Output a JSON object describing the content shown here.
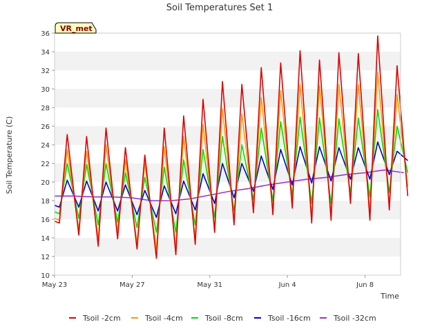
{
  "chart_data": {
    "type": "line",
    "title": "Soil Temperatures Set 1",
    "xlabel": "Time",
    "ylabel": "Soil Temperature (C)",
    "station_badge": "VR_met",
    "ylim": [
      10,
      36
    ],
    "y_ticks": [
      10,
      12,
      14,
      16,
      18,
      20,
      22,
      24,
      26,
      28,
      30,
      32,
      34,
      36
    ],
    "x_range_days": [
      "May 23",
      "Jun 10"
    ],
    "x_ticks": [
      {
        "day": 0,
        "label": "May 23"
      },
      {
        "day": 4,
        "label": "May 27"
      },
      {
        "day": 8,
        "label": "May 31"
      },
      {
        "day": 12,
        "label": "Jun 4"
      },
      {
        "day": 16,
        "label": "Jun 8"
      }
    ],
    "grid": "horizontal bands",
    "legend_position": "bottom",
    "series": [
      {
        "name": "Tsoil -2cm",
        "color": "#dd0000",
        "daily_min": [
          15.6,
          14.3,
          13.1,
          13.9,
          12.8,
          11.8,
          12.2,
          13.3,
          14.6,
          15.4,
          16.7,
          16.5,
          17.2,
          15.6,
          15.9,
          17.7,
          15.9,
          17.0
        ],
        "daily_max": [
          25.1,
          24.9,
          25.8,
          23.7,
          22.9,
          25.8,
          27.1,
          28.9,
          30.8,
          30.5,
          32.3,
          32.8,
          34.1,
          33.1,
          33.9,
          33.8,
          35.7,
          32.5
        ],
        "end_value": 18.5
      },
      {
        "name": "Tsoil -4cm",
        "color": "#ff9900",
        "daily_min": [
          15.9,
          14.9,
          13.9,
          14.6,
          13.5,
          12.8,
          13.0,
          14.0,
          15.1,
          15.9,
          17.2,
          17.0,
          17.7,
          16.3,
          16.5,
          18.1,
          16.8,
          17.6
        ],
        "daily_max": [
          23.5,
          23.3,
          24.0,
          22.4,
          22.0,
          23.8,
          24.9,
          26.2,
          27.9,
          27.3,
          29.1,
          29.8,
          30.5,
          30.4,
          30.5,
          30.5,
          31.8,
          29.4
        ],
        "end_value": 19.5
      },
      {
        "name": "Tsoil -8cm",
        "color": "#00dd00",
        "daily_min": [
          16.6,
          16.1,
          15.4,
          15.7,
          15.1,
          14.6,
          14.6,
          15.4,
          16.2,
          16.9,
          18.1,
          18.0,
          18.6,
          17.7,
          17.7,
          18.8,
          18.4,
          18.9
        ],
        "daily_max": [
          22.0,
          21.9,
          22.0,
          21.0,
          20.5,
          21.6,
          22.4,
          23.5,
          24.9,
          24.0,
          25.8,
          26.5,
          27.0,
          26.9,
          26.8,
          26.9,
          27.8,
          26.0
        ],
        "end_value": 21.0
      },
      {
        "name": "Tsoil -16cm",
        "color": "#0000cc",
        "daily_min": [
          17.3,
          17.3,
          16.9,
          16.9,
          16.5,
          16.2,
          16.6,
          17.0,
          17.7,
          18.3,
          19.0,
          19.2,
          19.7,
          19.9,
          20.1,
          20.3,
          20.3,
          20.8
        ],
        "daily_max": [
          20.2,
          20.1,
          20.0,
          19.7,
          19.1,
          19.6,
          20.1,
          20.9,
          22.0,
          22.0,
          22.8,
          23.5,
          23.8,
          23.8,
          23.7,
          23.7,
          24.3,
          23.3
        ],
        "end_value": 22.3
      },
      {
        "name": "Tsoil -32cm",
        "color": "#9933cc",
        "points": [
          [
            0,
            18.5
          ],
          [
            1,
            18.5
          ],
          [
            2,
            18.4
          ],
          [
            3,
            18.4
          ],
          [
            4,
            18.3
          ],
          [
            5,
            18.0
          ],
          [
            6,
            18.0
          ],
          [
            7,
            18.2
          ],
          [
            8,
            18.6
          ],
          [
            9,
            19.0
          ],
          [
            10,
            19.3
          ],
          [
            11,
            19.7
          ],
          [
            12,
            20.0
          ],
          [
            13,
            20.3
          ],
          [
            14,
            20.5
          ],
          [
            15,
            20.8
          ],
          [
            16,
            21.0
          ],
          [
            17,
            21.3
          ],
          [
            18,
            21.0
          ]
        ]
      }
    ]
  }
}
